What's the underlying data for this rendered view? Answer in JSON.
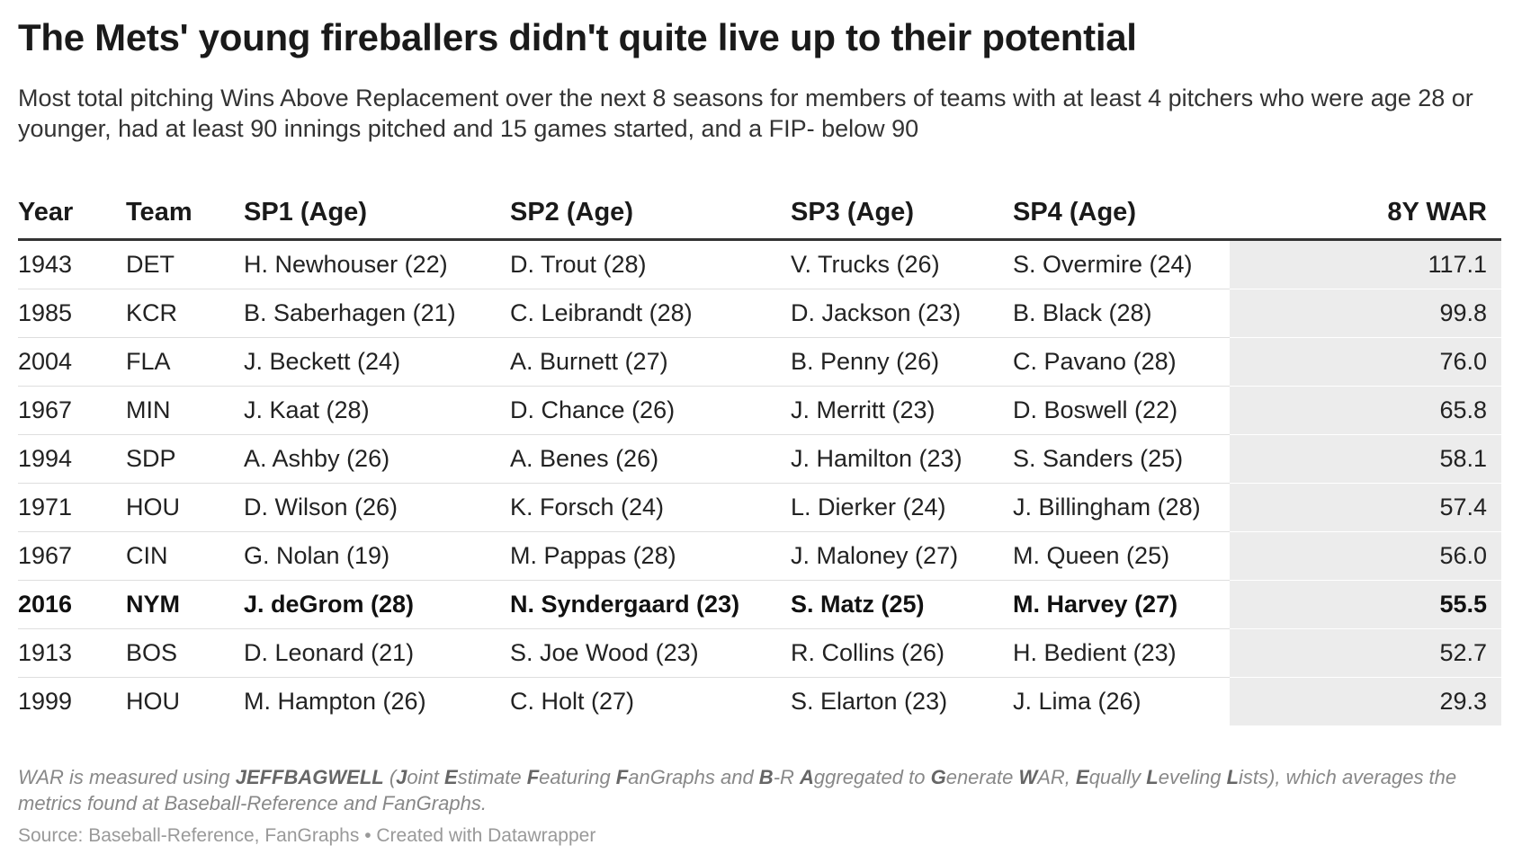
{
  "title": "The Mets' young fireballers didn't quite live up to their potential",
  "subtitle": "Most total pitching Wins Above Replacement over the next 8 seasons for members of teams with at least 4 pitchers who were age 28 or younger, had at least 90 innings pitched and 15 games started, and a FIP- below 90",
  "chart_data": {
    "type": "table",
    "columns": [
      "Year",
      "Team",
      "SP1 (Age)",
      "SP2 (Age)",
      "SP3 (Age)",
      "SP4 (Age)",
      "8Y WAR"
    ],
    "rows": [
      {
        "year": "1943",
        "team": "DET",
        "sp1": "H. Newhouser (22)",
        "sp2": "D. Trout (28)",
        "sp3": "V. Trucks (26)",
        "sp4": "S. Overmire (24)",
        "war": "117.1",
        "bold": false
      },
      {
        "year": "1985",
        "team": "KCR",
        "sp1": "B. Saberhagen (21)",
        "sp2": "C. Leibrandt (28)",
        "sp3": "D. Jackson (23)",
        "sp4": "B. Black (28)",
        "war": "99.8",
        "bold": false
      },
      {
        "year": "2004",
        "team": "FLA",
        "sp1": "J. Beckett (24)",
        "sp2": "A. Burnett (27)",
        "sp3": "B. Penny (26)",
        "sp4": "C. Pavano (28)",
        "war": "76.0",
        "bold": false
      },
      {
        "year": "1967",
        "team": "MIN",
        "sp1": "J. Kaat (28)",
        "sp2": "D. Chance (26)",
        "sp3": "J. Merritt (23)",
        "sp4": "D. Boswell (22)",
        "war": "65.8",
        "bold": false
      },
      {
        "year": "1994",
        "team": "SDP",
        "sp1": "A. Ashby (26)",
        "sp2": "A. Benes (26)",
        "sp3": "J. Hamilton (23)",
        "sp4": "S. Sanders (25)",
        "war": "58.1",
        "bold": false
      },
      {
        "year": "1971",
        "team": "HOU",
        "sp1": "D. Wilson (26)",
        "sp2": "K. Forsch (24)",
        "sp3": "L. Dierker (24)",
        "sp4": "J. Billingham (28)",
        "war": "57.4",
        "bold": false
      },
      {
        "year": "1967",
        "team": "CIN",
        "sp1": "G. Nolan (19)",
        "sp2": "M. Pappas (28)",
        "sp3": "J. Maloney (27)",
        "sp4": "M. Queen (25)",
        "war": "56.0",
        "bold": false
      },
      {
        "year": "2016",
        "team": "NYM",
        "sp1": "J. deGrom (28)",
        "sp2": "N. Syndergaard (23)",
        "sp3": "S. Matz (25)",
        "sp4": "M. Harvey (27)",
        "war": "55.5",
        "bold": true
      },
      {
        "year": "1913",
        "team": "BOS",
        "sp1": "D. Leonard (21)",
        "sp2": "S. Joe Wood (23)",
        "sp3": "R. Collins (26)",
        "sp4": "H. Bedient (23)",
        "war": "52.7",
        "bold": false
      },
      {
        "year": "1999",
        "team": "HOU",
        "sp1": "M. Hampton (26)",
        "sp2": "C. Holt (27)",
        "sp3": "S. Elarton (23)",
        "sp4": "J. Lima (26)",
        "war": "29.3",
        "bold": false
      }
    ]
  },
  "notes": [
    {
      "t": "WAR is measured using ",
      "b": false
    },
    {
      "t": "JEFFBAGWELL",
      "b": true
    },
    {
      "t": " (",
      "b": false
    },
    {
      "t": "J",
      "b": true
    },
    {
      "t": "oint ",
      "b": false
    },
    {
      "t": "E",
      "b": true
    },
    {
      "t": "stimate ",
      "b": false
    },
    {
      "t": "F",
      "b": true
    },
    {
      "t": "eaturing ",
      "b": false
    },
    {
      "t": "F",
      "b": true
    },
    {
      "t": "anGraphs and ",
      "b": false
    },
    {
      "t": "B",
      "b": true
    },
    {
      "t": "-R ",
      "b": false
    },
    {
      "t": "A",
      "b": true
    },
    {
      "t": "ggregated to ",
      "b": false
    },
    {
      "t": "G",
      "b": true
    },
    {
      "t": "enerate ",
      "b": false
    },
    {
      "t": "W",
      "b": true
    },
    {
      "t": "AR, ",
      "b": false
    },
    {
      "t": "E",
      "b": true
    },
    {
      "t": "qually ",
      "b": false
    },
    {
      "t": "L",
      "b": true
    },
    {
      "t": "eveling ",
      "b": false
    },
    {
      "t": "L",
      "b": true
    },
    {
      "t": "ists), which averages the metrics found at Baseball-Reference and FanGraphs.",
      "b": false
    }
  ],
  "source": "Source: Baseball-Reference, FanGraphs • Created with Datawrapper"
}
